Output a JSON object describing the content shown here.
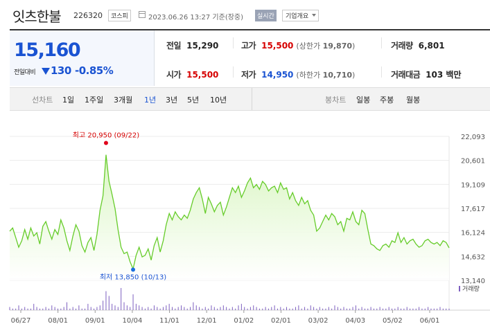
{
  "header": {
    "name": "잇츠한불",
    "code": "226320",
    "market": "코스피",
    "datetime": "2023.06.26 13:27 기준(장중)",
    "realtime_badge": "실시간",
    "overview_button": "기업개요"
  },
  "price": {
    "current": "15,160",
    "change_label": "전일대비",
    "change": "130",
    "change_direction": "down",
    "change_rate": "-0.85%"
  },
  "stats": {
    "prev": {
      "label": "전일",
      "value": "15,290"
    },
    "high": {
      "label": "고가",
      "value": "15,500",
      "sub_label": "(상한가 ",
      "sub_value": "19,870",
      "sub_end": ")"
    },
    "volume": {
      "label": "거래량",
      "value": "6,801"
    },
    "open": {
      "label": "시가",
      "value": "15,500"
    },
    "low": {
      "label": "저가",
      "value": "14,950",
      "sub_label": "(하한가 ",
      "sub_value": "10,710",
      "sub_end": ")"
    },
    "amount": {
      "label": "거래대금",
      "value": "103 백만"
    }
  },
  "tabs": {
    "line_label": "선차트",
    "line_periods": [
      "1일",
      "1주일",
      "3개월",
      "1년",
      "3년",
      "5년",
      "10년"
    ],
    "active_period": "1년",
    "candle_label": "봉차트",
    "candle_periods": [
      "일봉",
      "주봉",
      "월봉"
    ]
  },
  "chart_data": {
    "type": "area",
    "y_ticks": [
      "22,093",
      "20,601",
      "19,109",
      "17,617",
      "16,124",
      "14,632",
      "13,140"
    ],
    "y_tick_values": [
      22093,
      20601,
      19109,
      17617,
      16124,
      14632,
      13140
    ],
    "ylim": [
      13140,
      22093
    ],
    "x_ticks": [
      "06/27",
      "08/01",
      "09/01",
      "10/04",
      "11/01",
      "12/01",
      "01/02",
      "02/01",
      "03/02",
      "04/03",
      "05/02",
      "06/01"
    ],
    "max_annotation": "최고 20,950 (09/22)",
    "max_value": 20950,
    "max_date": "09/22",
    "min_annotation": "최저 13,850 (10/13)",
    "min_value": 13850,
    "min_date": "10/13",
    "volume_label": "거래량",
    "line_color": "#66cc2a",
    "fill_color": "#d8f5c0",
    "volume_color": "#7d5fc0",
    "series": [
      {
        "values": [
          16200,
          16400,
          15800,
          15200,
          15600,
          16300,
          15700,
          16400,
          15900,
          16100,
          15400,
          16500,
          16800,
          16200,
          15700,
          16300,
          16000,
          16900,
          16400,
          15600,
          15000,
          15900,
          16600,
          16200,
          15300,
          14900,
          15500,
          15800,
          15000,
          16000,
          17500,
          18400,
          20950,
          19300,
          18500,
          17600,
          16300,
          15200,
          14800,
          14900,
          14300,
          13850,
          14700,
          15200,
          14600,
          14700,
          15100,
          14400,
          15300,
          15800,
          14900,
          15600,
          16600,
          17300,
          16900,
          17400,
          17100,
          16900,
          17200,
          17000,
          17500,
          18200,
          18600,
          18900,
          18200,
          17300,
          18300,
          17900,
          17400,
          17800,
          18000,
          17200,
          17700,
          18300,
          18900,
          18600,
          19000,
          18300,
          18700,
          19200,
          19500,
          18900,
          19100,
          18800,
          19300,
          19100,
          18700,
          18900,
          19000,
          18600,
          19200,
          18800,
          18900,
          18200,
          18600,
          18100,
          17800,
          18300,
          17900,
          18100,
          17500,
          17200,
          16200,
          16400,
          16800,
          17200,
          16900,
          17300,
          17100,
          16600,
          16800,
          16200,
          17000,
          16900,
          17400,
          16800,
          16600,
          17500,
          17300,
          16300,
          15400,
          15300,
          15100,
          15000,
          15300,
          15400,
          15200,
          15600,
          15500,
          16100,
          15500,
          15800,
          15400,
          15600,
          15700,
          15400,
          15200,
          15300,
          15600,
          15700,
          15500,
          15400,
          15500,
          15300,
          15600,
          15500,
          15160
        ]
      }
    ],
    "volume": [
      2,
      1,
      1,
      3,
      1,
      2,
      1,
      1,
      4,
      2,
      1,
      1,
      2,
      1,
      3,
      2,
      1,
      1,
      2,
      5,
      1,
      2,
      1,
      3,
      1,
      1,
      4,
      2,
      1,
      2,
      3,
      6,
      12,
      9,
      4,
      3,
      2,
      14,
      5,
      3,
      2,
      10,
      4,
      3,
      2,
      1,
      2,
      1,
      3,
      2,
      1,
      2,
      3,
      4,
      2,
      1,
      2,
      3,
      2,
      1,
      2,
      5,
      3,
      2,
      1,
      2,
      1,
      3,
      2,
      1,
      2,
      3,
      2,
      1,
      2,
      1,
      3,
      4,
      2,
      1,
      2,
      3,
      2,
      1,
      1,
      2,
      1,
      2,
      3,
      1,
      2,
      1,
      2,
      1,
      1,
      2,
      3,
      1,
      2,
      1,
      3,
      2,
      1,
      2,
      1,
      1,
      2,
      1,
      3,
      2,
      1,
      2,
      1,
      1,
      2,
      3,
      1,
      2,
      1,
      1,
      2,
      1,
      1,
      2,
      1,
      1,
      2,
      1,
      1,
      2,
      1,
      1,
      2,
      1,
      1,
      1,
      2,
      1,
      1,
      2,
      1,
      1,
      1,
      2,
      1,
      1,
      1
    ]
  }
}
